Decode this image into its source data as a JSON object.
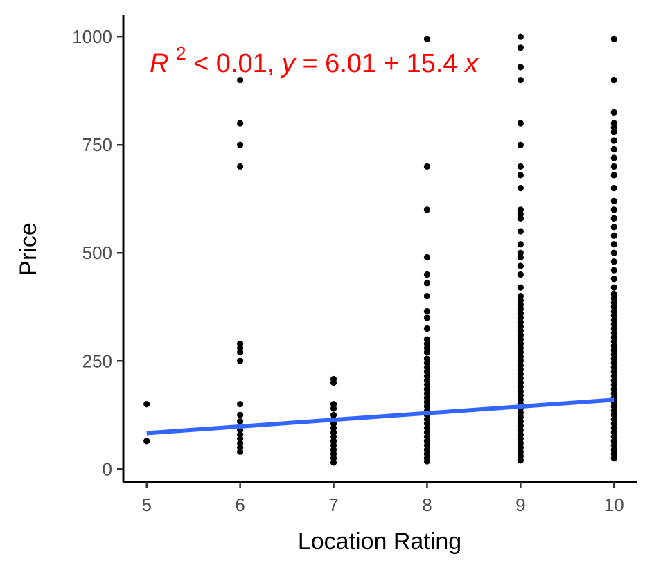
{
  "chart_data": {
    "type": "scatter",
    "title": "",
    "xlabel": "Location Rating",
    "ylabel": "Price",
    "xlim": [
      4.75,
      10.25
    ],
    "ylim": [
      -30,
      1050
    ],
    "x_ticks": [
      5,
      6,
      7,
      8,
      9,
      10
    ],
    "x_tick_labels": [
      "5",
      "6",
      "7",
      "8",
      "9",
      "10"
    ],
    "y_ticks": [
      0,
      250,
      500,
      750,
      1000
    ],
    "y_tick_labels": [
      "0",
      "250",
      "500",
      "750",
      "1000"
    ],
    "grid": false,
    "legend": "none",
    "point_color": "#000000",
    "fit_color": "#3366ff",
    "annotation_color": "#ff0000",
    "annotation": {
      "r_symbol": "R",
      "r_exponent": "2",
      "r_value": " < 0.01, ",
      "y_symbol": "y",
      "equation": " = 6.01 + 15.4 ",
      "x_symbol": "x"
    },
    "fit_line": {
      "intercept": 6.01,
      "slope": 15.4,
      "x_range": [
        5,
        10
      ],
      "y_at_ends": [
        83,
        160
      ]
    },
    "series": [
      {
        "x": 5,
        "y": [
          65,
          150
        ]
      },
      {
        "x": 6,
        "y": [
          40,
          50,
          60,
          70,
          80,
          90,
          100,
          110,
          125,
          150,
          250,
          270,
          280,
          290,
          700,
          750,
          800,
          900
        ]
      },
      {
        "x": 7,
        "y": [
          15,
          25,
          35,
          45,
          55,
          65,
          75,
          85,
          95,
          105,
          115,
          125,
          140,
          150,
          200,
          208
        ]
      },
      {
        "x": 8,
        "y": [
          18,
          25,
          35,
          45,
          55,
          65,
          75,
          85,
          95,
          105,
          115,
          125,
          135,
          145,
          155,
          165,
          175,
          185,
          195,
          205,
          215,
          225,
          235,
          245,
          255,
          270,
          280,
          290,
          300,
          325,
          350,
          365,
          400,
          430,
          450,
          490,
          600,
          700,
          995
        ]
      },
      {
        "x": 9,
        "y": [
          20,
          30,
          40,
          50,
          60,
          70,
          80,
          90,
          100,
          110,
          120,
          130,
          140,
          150,
          160,
          170,
          180,
          190,
          200,
          210,
          220,
          230,
          240,
          250,
          260,
          270,
          280,
          290,
          300,
          310,
          320,
          330,
          340,
          350,
          360,
          370,
          380,
          390,
          400,
          420,
          450,
          470,
          490,
          500,
          520,
          550,
          580,
          590,
          600,
          650,
          680,
          700,
          750,
          800,
          900,
          930,
          975,
          1000
        ]
      },
      {
        "x": 10,
        "y": [
          25,
          35,
          45,
          55,
          65,
          75,
          85,
          95,
          105,
          115,
          125,
          135,
          145,
          155,
          165,
          175,
          185,
          195,
          205,
          215,
          225,
          235,
          245,
          255,
          265,
          275,
          285,
          295,
          305,
          315,
          325,
          335,
          345,
          355,
          365,
          375,
          385,
          395,
          405,
          420,
          440,
          460,
          480,
          500,
          520,
          540,
          560,
          580,
          600,
          620,
          650,
          680,
          700,
          720,
          740,
          760,
          780,
          790,
          800,
          825,
          900,
          995
        ]
      }
    ]
  }
}
